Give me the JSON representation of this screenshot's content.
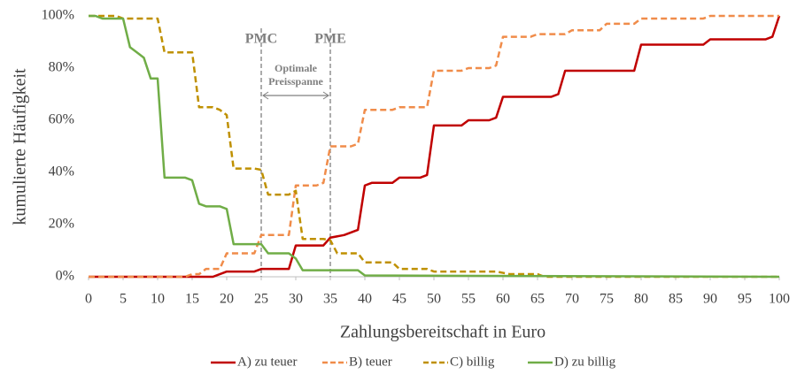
{
  "chart_data": {
    "type": "line",
    "xlabel": "Zahlungsbereitschaft in Euro",
    "ylabel": "kumulierte Häufigkeit",
    "xlim": [
      0,
      100
    ],
    "xticks": [
      0,
      5,
      10,
      15,
      20,
      25,
      30,
      35,
      40,
      45,
      50,
      55,
      60,
      65,
      70,
      75,
      80,
      85,
      90,
      95,
      100
    ],
    "ylim": [
      0,
      100
    ],
    "yticks": [
      {
        "value": 0,
        "label": "0%"
      },
      {
        "value": 20,
        "label": "20%"
      },
      {
        "value": 40,
        "label": "40%"
      },
      {
        "value": 60,
        "label": "60%"
      },
      {
        "value": 80,
        "label": "80%"
      },
      {
        "value": 100,
        "label": "100%"
      }
    ],
    "grid": false,
    "legend": "bottom",
    "annotations": [
      {
        "label": "PMC",
        "x": 25
      },
      {
        "label": "PME",
        "x": 35
      }
    ],
    "range_label": [
      "Optimale",
      "Preisspanne"
    ],
    "series": [
      {
        "name": "A) zu teuer",
        "color": "#c00000",
        "dashed": false,
        "x": [
          0,
          18,
          20,
          24,
          25,
          29,
          30,
          34,
          35,
          37,
          39,
          40,
          41,
          44,
          45,
          48,
          49,
          50,
          54,
          55,
          58,
          59,
          60,
          67,
          68,
          69,
          79,
          80,
          89,
          90,
          98,
          99,
          100
        ],
        "values": [
          0,
          0,
          2,
          2,
          3,
          3,
          12,
          12,
          15,
          16,
          18,
          35,
          36,
          36,
          38,
          38,
          39,
          58,
          58,
          60,
          60,
          61,
          69,
          69,
          70,
          79,
          79,
          89,
          89,
          91,
          91,
          92,
          100
        ]
      },
      {
        "name": "B) teuer",
        "color": "#f08c4a",
        "dashed": true,
        "x": [
          0,
          14,
          15,
          16,
          17,
          19,
          20,
          24,
          25,
          29,
          30,
          33,
          34,
          35,
          38,
          39,
          40,
          44,
          45,
          49,
          50,
          54,
          55,
          58,
          59,
          60,
          64,
          65,
          69,
          70,
          74,
          75,
          79,
          80,
          89,
          90,
          100
        ],
        "values": [
          0,
          0,
          1,
          1,
          3,
          3,
          9,
          9,
          16,
          16,
          35,
          35,
          36,
          50,
          50,
          51,
          64,
          64,
          65,
          65,
          79,
          79,
          80,
          80,
          81,
          92,
          92,
          93,
          93,
          94.5,
          94.5,
          97,
          97,
          99,
          99,
          100,
          100
        ]
      },
      {
        "name": "C) billig",
        "color": "#bf9000",
        "dashed": true,
        "x": [
          0,
          4,
          5,
          10,
          11,
          15,
          16,
          18,
          19,
          20,
          21,
          24,
          25,
          26,
          29,
          30,
          31,
          34,
          35,
          36,
          39,
          40,
          44,
          45,
          49,
          50,
          59,
          60,
          61,
          65,
          66,
          100
        ],
        "values": [
          100,
          100,
          99,
          99,
          86,
          86,
          65,
          65,
          64,
          62,
          41.5,
          41.5,
          41,
          31.5,
          31.5,
          33,
          14.5,
          14.5,
          14,
          9,
          9,
          5.5,
          5.5,
          3,
          3,
          2,
          2,
          1.5,
          1,
          1,
          0,
          0
        ]
      },
      {
        "name": "D) zu billig",
        "color": "#70ad47",
        "dashed": false,
        "x": [
          0,
          1,
          2,
          5,
          6,
          7,
          8,
          9,
          10,
          11,
          14,
          15,
          16,
          17,
          19,
          20,
          21,
          25,
          26,
          29,
          30,
          31,
          39,
          40,
          100
        ],
        "values": [
          100,
          100,
          99,
          99,
          88,
          86,
          84,
          76,
          76,
          38,
          38,
          37,
          28,
          27,
          27,
          26,
          12.5,
          12.5,
          9,
          9,
          7,
          2.5,
          2.5,
          0.5,
          0
        ]
      }
    ]
  }
}
